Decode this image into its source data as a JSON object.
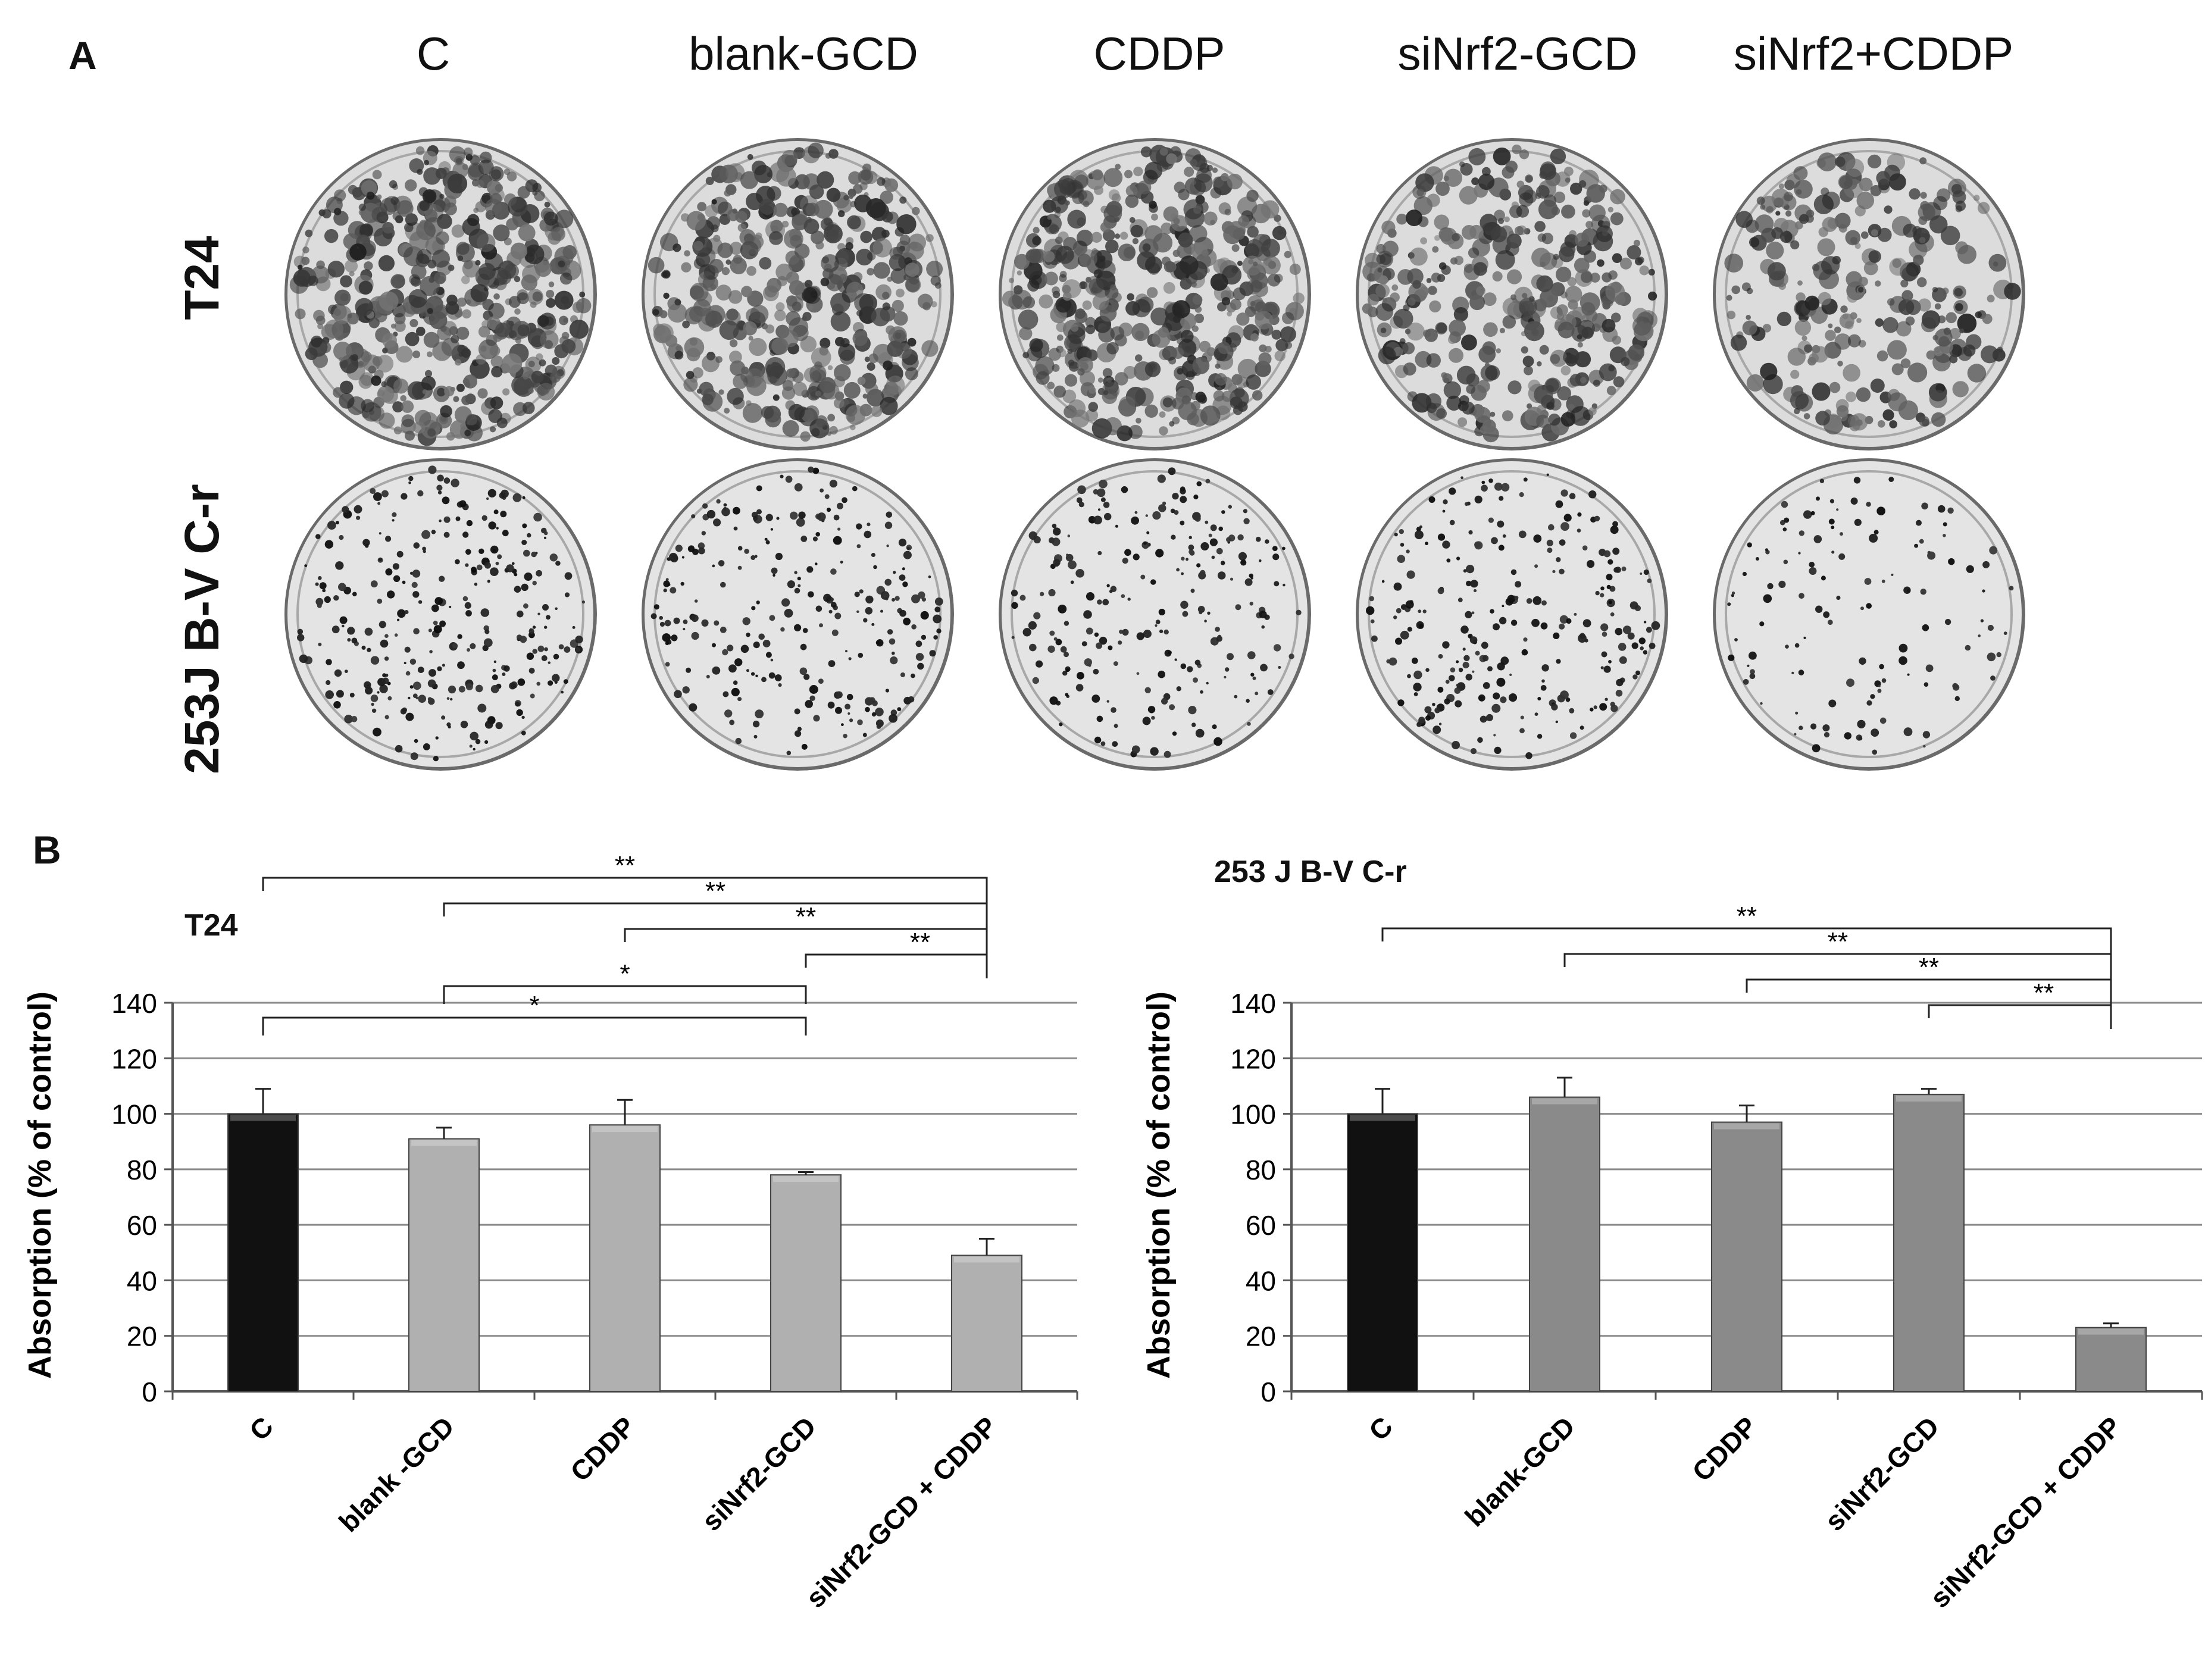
{
  "panels": {
    "a": "A",
    "b": "B"
  },
  "panel_a": {
    "columns": [
      "C",
      "blank-GCD",
      "CDDP",
      "siNrf2-GCD",
      "siNrf2+CDDP"
    ],
    "rows": [
      {
        "label": "T24",
        "density": [
          1.0,
          0.85,
          0.95,
          0.75,
          0.55
        ]
      },
      {
        "label": "253J B-V C-r",
        "density": [
          0.7,
          0.6,
          0.55,
          0.6,
          0.3
        ]
      }
    ]
  },
  "chart_data": [
    {
      "type": "bar",
      "title": "T24",
      "ylabel": "Absorption (% of control)",
      "ylim": [
        0,
        140
      ],
      "yticks": [
        0,
        20,
        40,
        60,
        80,
        100,
        120,
        140
      ],
      "grid": true,
      "categories": [
        "C",
        "blank -GCD",
        "CDDP",
        "siNrf2-GCD",
        "siNrf2-GCD + CDDP"
      ],
      "values": [
        100,
        91,
        96,
        78,
        49
      ],
      "errors": [
        9,
        4,
        9,
        1,
        6
      ],
      "colors": [
        "#111111",
        "#b0b0b0",
        "#b0b0b0",
        "#b0b0b0",
        "#b0b0b0"
      ],
      "significance": [
        {
          "from": 0,
          "to": 4,
          "label": "**"
        },
        {
          "from": 1,
          "to": 4,
          "label": "**"
        },
        {
          "from": 2,
          "to": 4,
          "label": "**"
        },
        {
          "from": 3,
          "to": 4,
          "label": "**"
        },
        {
          "from": 1,
          "to": 3,
          "label": "*"
        },
        {
          "from": 0,
          "to": 3,
          "label": "*"
        }
      ]
    },
    {
      "type": "bar",
      "title": "253 J B-V C-r",
      "ylabel": "Absorption (% of control)",
      "ylim": [
        0,
        140
      ],
      "yticks": [
        0,
        20,
        40,
        60,
        80,
        100,
        120,
        140
      ],
      "grid": true,
      "categories": [
        "C",
        "blank-GCD",
        "CDDP",
        "siNrf2-GCD",
        "siNrf2-GCD + CDDP"
      ],
      "values": [
        100,
        106,
        97,
        107,
        23
      ],
      "errors": [
        9,
        7,
        6,
        2,
        1.5
      ],
      "colors": [
        "#111111",
        "#8a8a8a",
        "#8a8a8a",
        "#8a8a8a",
        "#8a8a8a"
      ],
      "significance": [
        {
          "from": 0,
          "to": 4,
          "label": "**"
        },
        {
          "from": 1,
          "to": 4,
          "label": "**"
        },
        {
          "from": 2,
          "to": 4,
          "label": "**"
        },
        {
          "from": 3,
          "to": 4,
          "label": "**"
        }
      ]
    }
  ]
}
